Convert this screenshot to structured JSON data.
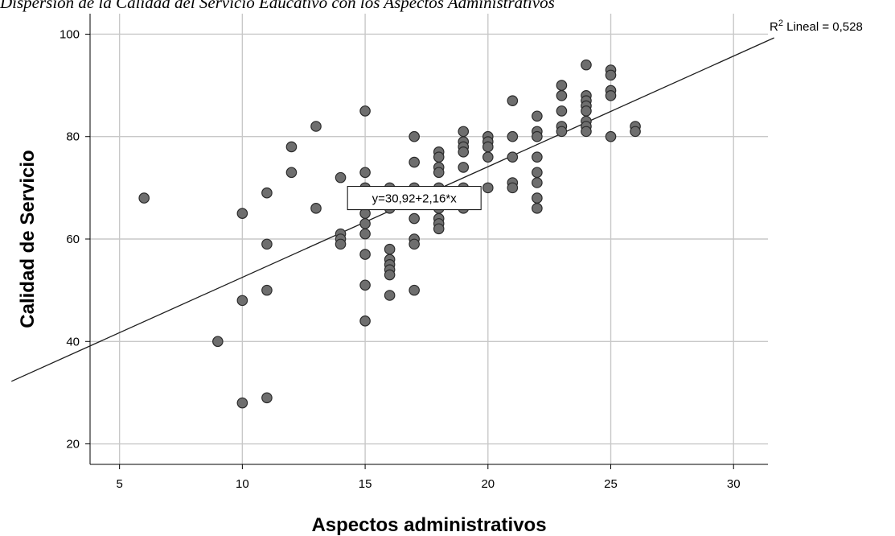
{
  "chart_data": {
    "type": "scatter",
    "title": "Dispersión de la Calidad del Servicio Educativo con los Aspectos Administrativos",
    "xlabel": "Aspectos administrativos",
    "ylabel": "Calidad de Servicio",
    "xlim": [
      3.8,
      31.4
    ],
    "ylim": [
      16,
      104
    ],
    "xticks": [
      5,
      10,
      15,
      20,
      25,
      30
    ],
    "yticks": [
      20,
      40,
      60,
      80,
      100
    ],
    "grid": true,
    "point_color": "#6e6e6e",
    "fit_line": {
      "intercept": 30.92,
      "slope": 2.16,
      "label": "y=30,92+2,16*x",
      "label_at": [
        17,
        68
      ]
    },
    "r2_label": {
      "prefix": "R",
      "sup": "2",
      "text": " Lineal = 0,528"
    },
    "points": [
      [
        6,
        68
      ],
      [
        9,
        40
      ],
      [
        10,
        65
      ],
      [
        10,
        48
      ],
      [
        10,
        28
      ],
      [
        11,
        69
      ],
      [
        11,
        59
      ],
      [
        11,
        50
      ],
      [
        11,
        29
      ],
      [
        12,
        78
      ],
      [
        12,
        73
      ],
      [
        13,
        82
      ],
      [
        13,
        66
      ],
      [
        14,
        72
      ],
      [
        14,
        61
      ],
      [
        14,
        60
      ],
      [
        14,
        59
      ],
      [
        15,
        85
      ],
      [
        15,
        73
      ],
      [
        15,
        70
      ],
      [
        15,
        67
      ],
      [
        15,
        65
      ],
      [
        15,
        63
      ],
      [
        15,
        61
      ],
      [
        15,
        57
      ],
      [
        15,
        51
      ],
      [
        15,
        44
      ],
      [
        16,
        70
      ],
      [
        16,
        68
      ],
      [
        16,
        66
      ],
      [
        16,
        58
      ],
      [
        16,
        56
      ],
      [
        16,
        55
      ],
      [
        16,
        54
      ],
      [
        16,
        53
      ],
      [
        16,
        49
      ],
      [
        17,
        80
      ],
      [
        17,
        75
      ],
      [
        17,
        70
      ],
      [
        17,
        68
      ],
      [
        17,
        64
      ],
      [
        17,
        60
      ],
      [
        17,
        59
      ],
      [
        17,
        50
      ],
      [
        18,
        77
      ],
      [
        18,
        76
      ],
      [
        18,
        74
      ],
      [
        18,
        73
      ],
      [
        18,
        70
      ],
      [
        18,
        68
      ],
      [
        18,
        66
      ],
      [
        18,
        64
      ],
      [
        18,
        63
      ],
      [
        18,
        62
      ],
      [
        19,
        81
      ],
      [
        19,
        79
      ],
      [
        19,
        78
      ],
      [
        19,
        77
      ],
      [
        19,
        74
      ],
      [
        19,
        70
      ],
      [
        19,
        68
      ],
      [
        19,
        66
      ],
      [
        20,
        80
      ],
      [
        20,
        79
      ],
      [
        20,
        78
      ],
      [
        20,
        76
      ],
      [
        20,
        70
      ],
      [
        21,
        87
      ],
      [
        21,
        80
      ],
      [
        21,
        76
      ],
      [
        21,
        71
      ],
      [
        21,
        70
      ],
      [
        22,
        84
      ],
      [
        22,
        81
      ],
      [
        22,
        80
      ],
      [
        22,
        76
      ],
      [
        22,
        73
      ],
      [
        22,
        71
      ],
      [
        22,
        68
      ],
      [
        22,
        66
      ],
      [
        23,
        90
      ],
      [
        23,
        88
      ],
      [
        23,
        85
      ],
      [
        23,
        82
      ],
      [
        23,
        81
      ],
      [
        24,
        94
      ],
      [
        24,
        88
      ],
      [
        24,
        87
      ],
      [
        24,
        86
      ],
      [
        24,
        85
      ],
      [
        24,
        83
      ],
      [
        24,
        82
      ],
      [
        24,
        81
      ],
      [
        25,
        93
      ],
      [
        25,
        92
      ],
      [
        25,
        89
      ],
      [
        25,
        88
      ],
      [
        25,
        80
      ],
      [
        26,
        82
      ],
      [
        26,
        81
      ]
    ]
  }
}
